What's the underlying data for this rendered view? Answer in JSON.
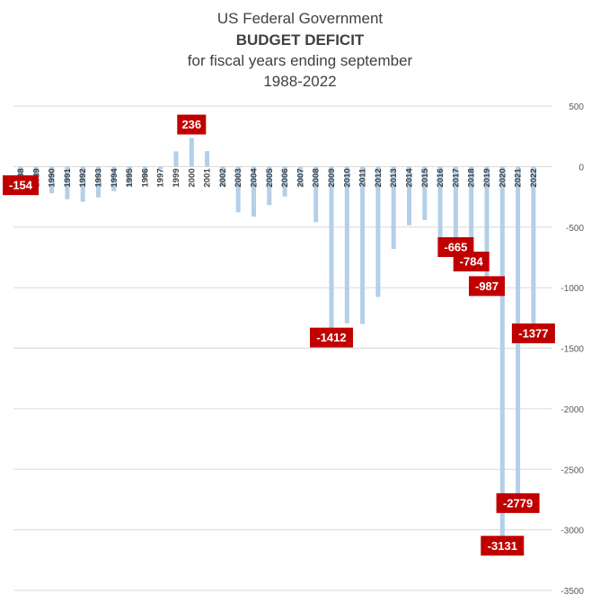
{
  "chart_data": {
    "type": "bar",
    "title_lines": [
      "US Federal Government",
      "BUDGET DEFICIT",
      "for fiscal years ending september",
      "1988-2022"
    ],
    "categories": [
      "1988",
      "1989",
      "1990",
      "1991",
      "1992",
      "1993",
      "1994",
      "1995",
      "1996",
      "1997",
      "1999",
      "2000",
      "2001",
      "2002",
      "2003",
      "2004",
      "2005",
      "2006",
      "2007",
      "2008",
      "2009",
      "2010",
      "2011",
      "2012",
      "2013",
      "2014",
      "2015",
      "2016",
      "2017",
      "2018",
      "2019",
      "2020",
      "2021",
      "2022"
    ],
    "values": [
      -154,
      -153,
      -221,
      -269,
      -290,
      -255,
      -203,
      -164,
      -107,
      -22,
      126,
      236,
      128,
      -158,
      -378,
      -413,
      -318,
      -248,
      -161,
      -459,
      -1412,
      -1294,
      -1300,
      -1077,
      -680,
      -485,
      -442,
      -585,
      -665,
      -784,
      -987,
      -3131,
      -2779,
      -1377
    ],
    "value_labels": [
      {
        "category": "1988",
        "text": "-154"
      },
      {
        "category": "2000",
        "text": "236"
      },
      {
        "category": "2009",
        "text": "-1412"
      },
      {
        "category": "2017",
        "text": "-665"
      },
      {
        "category": "2018",
        "text": "-784"
      },
      {
        "category": "2019",
        "text": "-987"
      },
      {
        "category": "2020",
        "text": "-3131"
      },
      {
        "category": "2021",
        "text": "-2779"
      },
      {
        "category": "2022",
        "text": "-1377"
      }
    ],
    "y_ticks": [
      "500",
      "0",
      "-500",
      "-1000",
      "-1500",
      "-2000",
      "-2500",
      "-3000",
      "-3500"
    ],
    "ylim": [
      -3500,
      500
    ],
    "y_axis_side": "right",
    "grid": true,
    "bar_color": "#b4cfe8",
    "label_bg_color": "#c00000",
    "label_text_color": "#ffffff"
  }
}
